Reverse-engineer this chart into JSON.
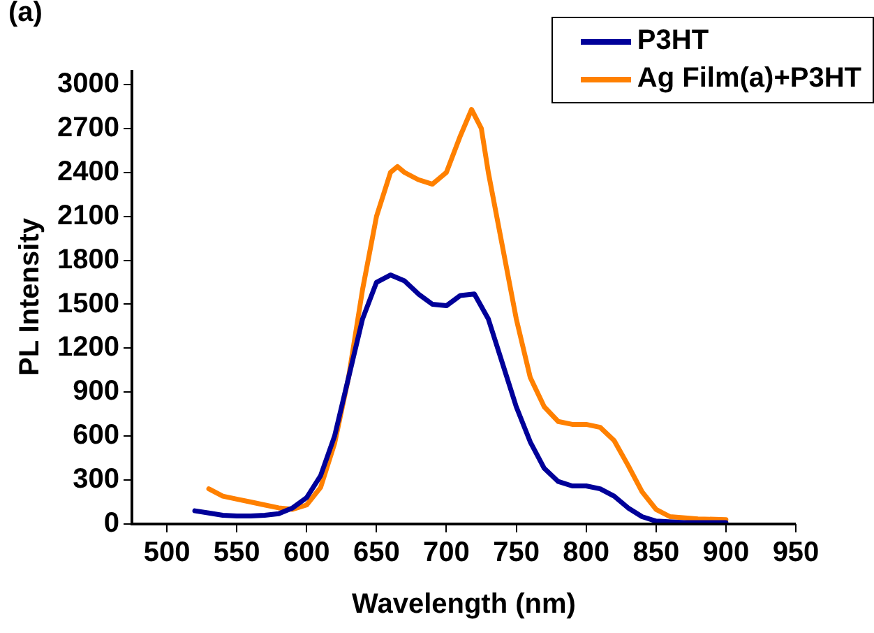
{
  "chart_data": {
    "type": "line",
    "xlabel": "Wavelength (nm)",
    "ylabel": "PL Intensity",
    "annotations": [
      "(a)"
    ],
    "xlim": [
      475,
      950
    ],
    "xticks": [
      500,
      550,
      600,
      650,
      700,
      750,
      800,
      850,
      900,
      950
    ],
    "ylim": [
      0,
      3100
    ],
    "yticks": [
      0,
      300,
      600,
      900,
      1200,
      1500,
      1800,
      2100,
      2400,
      2700,
      3000
    ],
    "legend": "top right",
    "grid": false,
    "marker": "none",
    "line_style": "solid",
    "series": [
      {
        "name": "P3HT",
        "color": "#000099",
        "x": [
          520,
          530,
          540,
          550,
          560,
          570,
          580,
          590,
          600,
          610,
          620,
          630,
          640,
          650,
          660,
          670,
          680,
          690,
          700,
          710,
          720,
          730,
          740,
          750,
          760,
          770,
          780,
          790,
          800,
          810,
          820,
          830,
          840,
          850,
          870,
          900
        ],
        "values": [
          90,
          75,
          60,
          55,
          55,
          60,
          70,
          110,
          180,
          330,
          600,
          1000,
          1400,
          1650,
          1700,
          1660,
          1570,
          1500,
          1490,
          1560,
          1570,
          1400,
          1100,
          800,
          560,
          380,
          290,
          260,
          260,
          240,
          190,
          110,
          50,
          20,
          10,
          10
        ]
      },
      {
        "name": "Ag Film(a)+P3HT",
        "color": "#ff8000",
        "x": [
          530,
          540,
          550,
          560,
          570,
          580,
          590,
          600,
          610,
          620,
          630,
          640,
          650,
          660,
          665,
          670,
          680,
          690,
          700,
          710,
          718,
          725,
          730,
          740,
          750,
          760,
          770,
          780,
          790,
          800,
          810,
          820,
          830,
          840,
          850,
          860,
          880,
          900
        ],
        "values": [
          240,
          190,
          170,
          150,
          130,
          110,
          100,
          130,
          250,
          550,
          1000,
          1600,
          2100,
          2400,
          2440,
          2400,
          2350,
          2320,
          2400,
          2650,
          2830,
          2700,
          2400,
          1900,
          1400,
          1000,
          800,
          700,
          680,
          680,
          660,
          570,
          400,
          220,
          100,
          50,
          35,
          30
        ]
      }
    ]
  }
}
